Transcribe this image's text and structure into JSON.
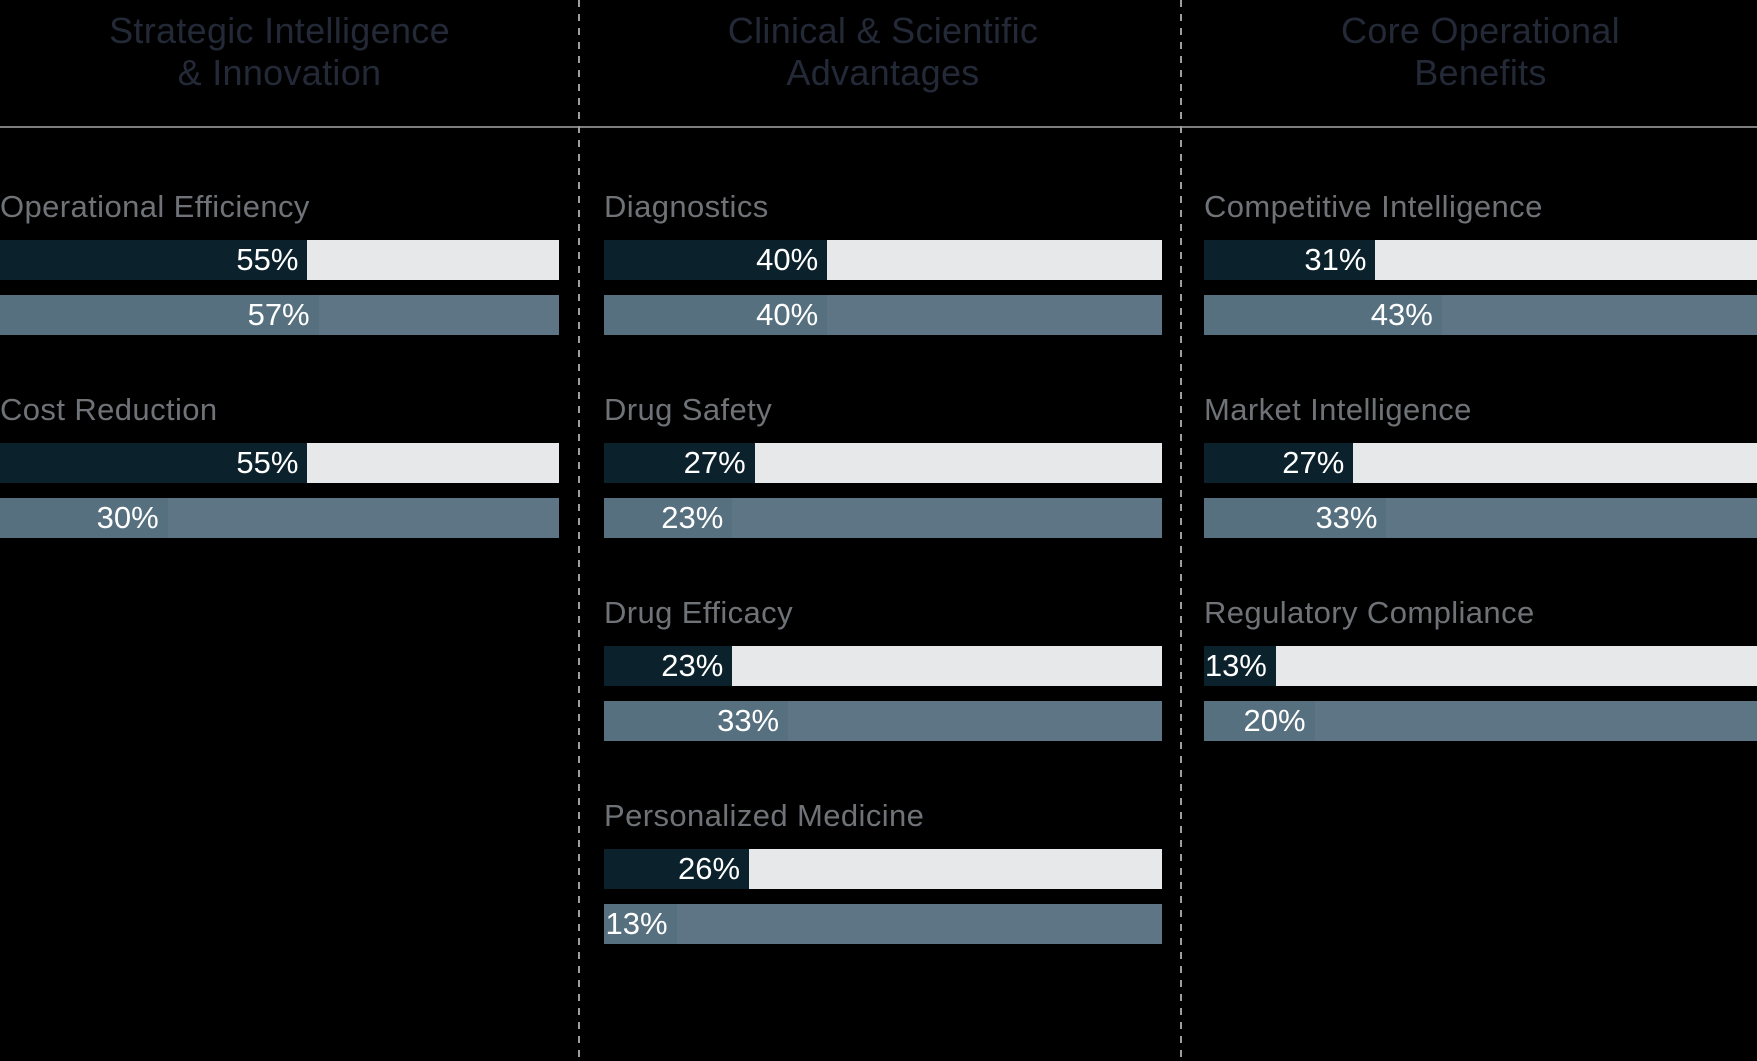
{
  "chart_data": {
    "type": "bar",
    "orientation": "horizontal",
    "unit": "%",
    "axis_max": 100,
    "grid": false,
    "legend": "none",
    "series_styles": {
      "series1": {
        "fill": "#0B212B",
        "track": "#E6E8EA"
      },
      "series2": {
        "fill": "#56707F",
        "track": "#5D7584"
      }
    },
    "groups": [
      {
        "header_lines": [
          "Strategic Intelligence",
          "& Innovation"
        ],
        "items": [
          {
            "label": "Operational Efficiency",
            "bars": [
              {
                "value": 55,
                "text": "55%"
              },
              {
                "value": 57,
                "text": "57%"
              }
            ]
          },
          {
            "label": "Cost Reduction",
            "bars": [
              {
                "value": 55,
                "text": "55%"
              },
              {
                "value": 30,
                "text": "30%"
              }
            ]
          }
        ]
      },
      {
        "header_lines": [
          "Clinical & Scientific",
          "Advantages"
        ],
        "items": [
          {
            "label": "Diagnostics",
            "bars": [
              {
                "value": 40,
                "text": "40%"
              },
              {
                "value": 40,
                "text": "40%"
              }
            ]
          },
          {
            "label": "Drug Safety",
            "bars": [
              {
                "value": 27,
                "text": "27%"
              },
              {
                "value": 23,
                "text": "23%"
              }
            ]
          },
          {
            "label": "Drug Efficacy",
            "bars": [
              {
                "value": 23,
                "text": "23%"
              },
              {
                "value": 33,
                "text": "33%"
              }
            ]
          },
          {
            "label": "Personalized Medicine",
            "bars": [
              {
                "value": 26,
                "text": "26%"
              },
              {
                "value": 13,
                "text": "13%"
              }
            ]
          }
        ]
      },
      {
        "header_lines": [
          "Core Operational",
          "Benefits"
        ],
        "items": [
          {
            "label": "Competitive Intelligence",
            "bars": [
              {
                "value": 31,
                "text": "31%"
              },
              {
                "value": 43,
                "text": "43%"
              }
            ]
          },
          {
            "label": "Market Intelligence",
            "bars": [
              {
                "value": 27,
                "text": "27%"
              },
              {
                "value": 33,
                "text": "33%"
              }
            ]
          },
          {
            "label": "Regulatory Compliance",
            "bars": [
              {
                "value": 13,
                "text": "13%"
              },
              {
                "value": 20,
                "text": "20%"
              }
            ]
          }
        ]
      }
    ],
    "value_label_color": "#FFFFFF"
  },
  "style": {
    "background": "#000000",
    "header_text_color": "#232937",
    "category_label_color": "#6F7377",
    "header_divider_color": "#7D7D7D",
    "column_separator_color": "#9E9E9E"
  }
}
